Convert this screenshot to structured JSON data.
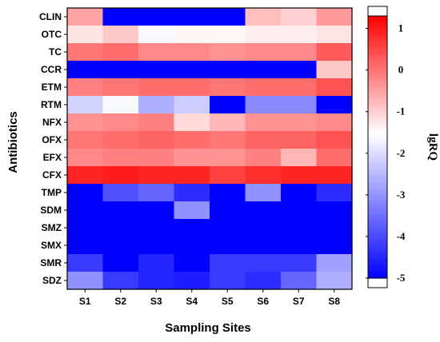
{
  "chart_data": {
    "type": "heatmap",
    "xlabel": "Sampling Sites",
    "ylabel": "Antibiotics",
    "colorbar_label": "lgRQ",
    "x": [
      "S1",
      "S2",
      "S3",
      "S4",
      "S5",
      "S6",
      "S7",
      "S8"
    ],
    "y": [
      "CLIN",
      "OTC",
      "TC",
      "CCR",
      "ETM",
      "RTM",
      "NFX",
      "OFX",
      "EFX",
      "CFX",
      "TMP",
      "SDM",
      "SMZ",
      "SMX",
      "SMR",
      "SDZ"
    ],
    "values": [
      [
        -0.5,
        -5,
        -5,
        -5,
        -5,
        -0.8,
        -1.0,
        -0.4
      ],
      [
        -1.2,
        -0.9,
        -1.6,
        -1.4,
        -1.4,
        -1.3,
        -1.3,
        -1.2
      ],
      [
        0.0,
        0.1,
        -0.2,
        -0.2,
        -0.3,
        -0.2,
        -0.2,
        0.3
      ],
      [
        -5,
        -5,
        -5,
        -5,
        -5,
        -5,
        -5,
        -0.9
      ],
      [
        -0.1,
        0.0,
        0.1,
        0.1,
        0.0,
        0.1,
        0.1,
        0.4
      ],
      [
        -2.1,
        -1.6,
        -2.6,
        -2.2,
        -5,
        -3.1,
        -3.1,
        -5
      ],
      [
        -0.3,
        -0.2,
        -0.1,
        -1.1,
        -0.7,
        -0.3,
        -0.3,
        -0.2
      ],
      [
        0.0,
        0.1,
        0.2,
        0.1,
        0.0,
        0.2,
        0.2,
        0.4
      ],
      [
        -0.2,
        -0.1,
        -0.1,
        -0.3,
        -0.3,
        -0.1,
        -0.7,
        0.1
      ],
      [
        0.9,
        1.0,
        0.9,
        0.9,
        0.6,
        0.8,
        0.9,
        0.9
      ],
      [
        -5,
        -3.9,
        -3.6,
        -4.4,
        -5,
        -3.0,
        -5,
        -4.4
      ],
      [
        -5,
        -5,
        -5,
        -3.0,
        -5,
        -5,
        -5,
        -5
      ],
      [
        -5,
        -5,
        -5,
        -5,
        -5,
        -5,
        -5,
        -5
      ],
      [
        -5,
        -5,
        -5,
        -5,
        -5,
        -5,
        -5,
        -5
      ],
      [
        -4.2,
        -5,
        -4.5,
        -5,
        -4.2,
        -4.2,
        -4.2,
        -2.8
      ],
      [
        -3.0,
        -4.2,
        -4.5,
        -4.6,
        -4.2,
        -4.4,
        -3.6,
        -2.6
      ]
    ],
    "colorbar_ticks": [
      1,
      0,
      -1,
      -2,
      -3,
      -4,
      -5
    ],
    "vmin": -5,
    "vmax": 1.3,
    "colors": {
      "high": "#ff0000",
      "mid": "#ffffff",
      "low": "#0000ff",
      "outline": "#000000"
    }
  }
}
